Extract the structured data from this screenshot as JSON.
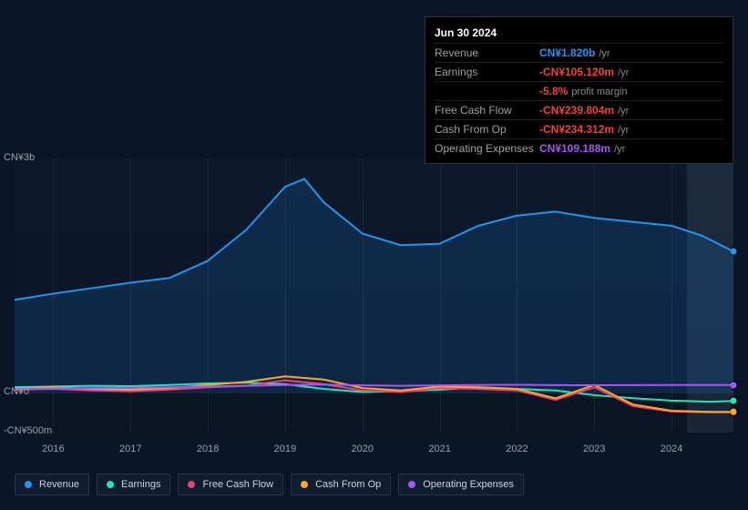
{
  "tooltip": {
    "date": "Jun 30 2024",
    "rows": [
      {
        "label": "Revenue",
        "value": "CN¥1.820b",
        "suffix": "/yr",
        "color": "#2196f3"
      },
      {
        "label": "Earnings",
        "value": "-CN¥105.120m",
        "suffix": "/yr",
        "color": "#f44336",
        "sub_value": "-5.8%",
        "sub_label": "profit margin",
        "sub_color": "#f44336"
      },
      {
        "label": "Free Cash Flow",
        "value": "-CN¥239.804m",
        "suffix": "/yr",
        "color": "#f44336"
      },
      {
        "label": "Cash From Op",
        "value": "-CN¥234.312m",
        "suffix": "/yr",
        "color": "#f44336"
      },
      {
        "label": "Operating Expenses",
        "value": "CN¥109.188m",
        "suffix": "/yr",
        "color": "#a855f7"
      }
    ]
  },
  "chart": {
    "type": "area",
    "y_axis": {
      "min": -500,
      "max": 3000,
      "ticks": [
        {
          "value": 3000,
          "label": "CN¥3b"
        },
        {
          "value": 0,
          "label": "CN¥0"
        },
        {
          "value": -500,
          "label": "-CN¥500m"
        }
      ]
    },
    "x_axis": {
      "min": 2015.5,
      "max": 2024.8,
      "ticks": [
        2016,
        2017,
        2018,
        2019,
        2020,
        2021,
        2022,
        2023,
        2024
      ],
      "hover_pos": 2024.5
    },
    "background_color": "#0d1a2d",
    "grid_color": "#1a2638",
    "series": [
      {
        "name": "Revenue",
        "color": "#2196f3",
        "area": true,
        "area_opacity": 0.15,
        "line_width": 2,
        "data": [
          [
            2015.5,
            1200
          ],
          [
            2016,
            1280
          ],
          [
            2016.5,
            1350
          ],
          [
            2017,
            1420
          ],
          [
            2017.5,
            1480
          ],
          [
            2018,
            1700
          ],
          [
            2018.5,
            2100
          ],
          [
            2019,
            2650
          ],
          [
            2019.25,
            2750
          ],
          [
            2019.5,
            2450
          ],
          [
            2020,
            2050
          ],
          [
            2020.5,
            1900
          ],
          [
            2021,
            1920
          ],
          [
            2021.5,
            2150
          ],
          [
            2022,
            2280
          ],
          [
            2022.5,
            2330
          ],
          [
            2023,
            2250
          ],
          [
            2023.5,
            2200
          ],
          [
            2024,
            2150
          ],
          [
            2024.4,
            2020
          ],
          [
            2024.8,
            1820
          ]
        ]
      },
      {
        "name": "Earnings",
        "color": "#1de9b6",
        "area": false,
        "line_width": 2,
        "data": [
          [
            2015.5,
            80
          ],
          [
            2016,
            90
          ],
          [
            2016.5,
            100
          ],
          [
            2017,
            95
          ],
          [
            2017.5,
            110
          ],
          [
            2018,
            130
          ],
          [
            2018.5,
            140
          ],
          [
            2019,
            120
          ],
          [
            2019.5,
            60
          ],
          [
            2020,
            20
          ],
          [
            2020.5,
            30
          ],
          [
            2021,
            50
          ],
          [
            2021.5,
            80
          ],
          [
            2022,
            60
          ],
          [
            2022.5,
            40
          ],
          [
            2023,
            -20
          ],
          [
            2023.5,
            -60
          ],
          [
            2024,
            -90
          ],
          [
            2024.5,
            -105
          ],
          [
            2024.8,
            -95
          ]
        ]
      },
      {
        "name": "Free Cash Flow",
        "color": "#ec407a",
        "area": false,
        "line_width": 2,
        "data": [
          [
            2015.5,
            50
          ],
          [
            2016,
            60
          ],
          [
            2016.5,
            40
          ],
          [
            2017,
            30
          ],
          [
            2017.5,
            50
          ],
          [
            2018,
            80
          ],
          [
            2018.5,
            100
          ],
          [
            2019,
            170
          ],
          [
            2019.5,
            120
          ],
          [
            2020,
            40
          ],
          [
            2020.5,
            20
          ],
          [
            2021,
            70
          ],
          [
            2021.5,
            60
          ],
          [
            2022,
            40
          ],
          [
            2022.5,
            -80
          ],
          [
            2023,
            80
          ],
          [
            2023.5,
            -160
          ],
          [
            2024,
            -230
          ],
          [
            2024.5,
            -240
          ],
          [
            2024.8,
            -240
          ]
        ]
      },
      {
        "name": "Cash From Op",
        "color": "#ffa726",
        "area": false,
        "line_width": 2,
        "data": [
          [
            2015.5,
            70
          ],
          [
            2016,
            80
          ],
          [
            2016.5,
            60
          ],
          [
            2017,
            50
          ],
          [
            2017.5,
            70
          ],
          [
            2018,
            110
          ],
          [
            2018.5,
            150
          ],
          [
            2019,
            220
          ],
          [
            2019.5,
            180
          ],
          [
            2020,
            70
          ],
          [
            2020.5,
            40
          ],
          [
            2021,
            90
          ],
          [
            2021.5,
            80
          ],
          [
            2022,
            60
          ],
          [
            2022.5,
            -60
          ],
          [
            2023,
            110
          ],
          [
            2023.5,
            -140
          ],
          [
            2024,
            -220
          ],
          [
            2024.5,
            -234
          ],
          [
            2024.8,
            -234
          ]
        ]
      },
      {
        "name": "Operating Expenses",
        "color": "#a855f7",
        "area": false,
        "line_width": 2,
        "data": [
          [
            2015.5,
            60
          ],
          [
            2016,
            65
          ],
          [
            2016.5,
            70
          ],
          [
            2017,
            75
          ],
          [
            2017.5,
            80
          ],
          [
            2018,
            90
          ],
          [
            2018.5,
            100
          ],
          [
            2019,
            110
          ],
          [
            2019.5,
            115
          ],
          [
            2020,
            105
          ],
          [
            2020.5,
            100
          ],
          [
            2021,
            105
          ],
          [
            2021.5,
            110
          ],
          [
            2022,
            112
          ],
          [
            2022.5,
            108
          ],
          [
            2023,
            106
          ],
          [
            2023.5,
            108
          ],
          [
            2024,
            109
          ],
          [
            2024.5,
            109
          ],
          [
            2024.8,
            109
          ]
        ]
      }
    ]
  },
  "legend": {
    "items": [
      {
        "label": "Revenue",
        "color": "#2196f3"
      },
      {
        "label": "Earnings",
        "color": "#1de9b6"
      },
      {
        "label": "Free Cash Flow",
        "color": "#ec407a"
      },
      {
        "label": "Cash From Op",
        "color": "#ffa726"
      },
      {
        "label": "Operating Expenses",
        "color": "#a855f7"
      }
    ]
  }
}
